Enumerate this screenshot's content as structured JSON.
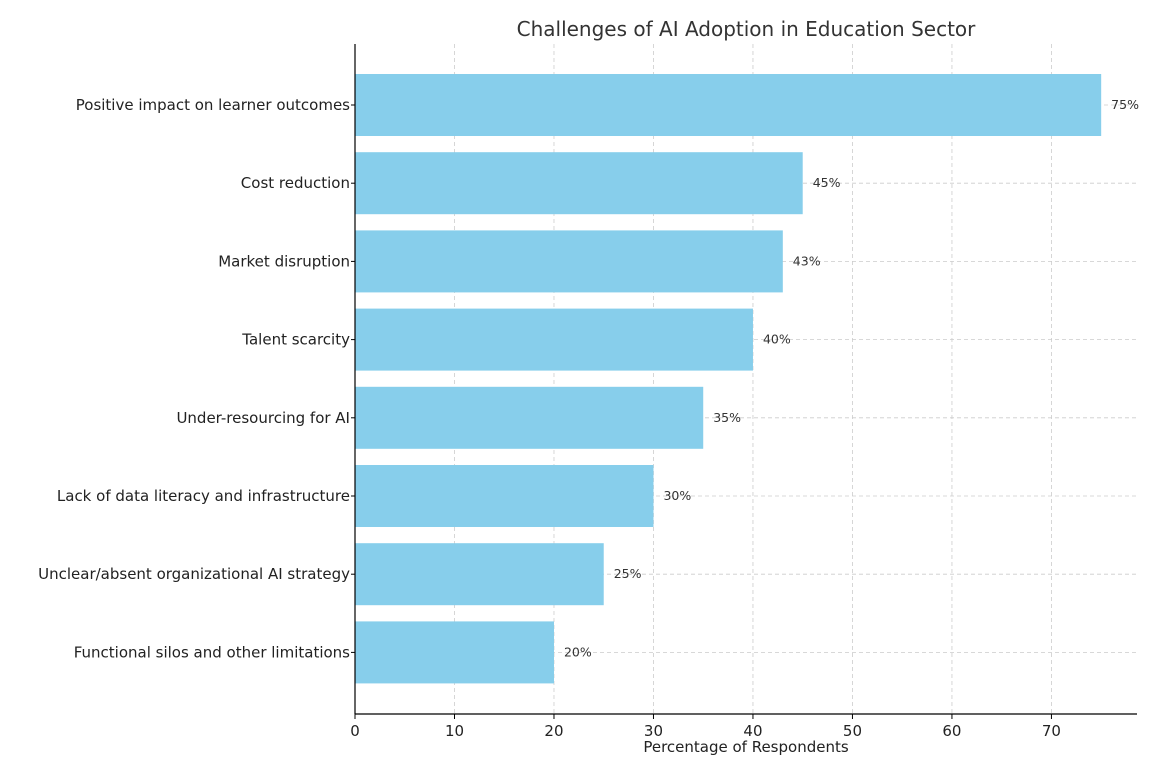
{
  "chart_data": {
    "type": "bar",
    "orientation": "horizontal",
    "title": "Challenges of AI Adoption in Education Sector",
    "xlabel": "Percentage of Respondents",
    "ylabel": "",
    "xlim": [
      0,
      78.6
    ],
    "xticks": [
      0,
      10,
      20,
      30,
      40,
      50,
      60,
      70
    ],
    "grid": true,
    "bar_color": "#87CEEB",
    "categories": [
      "Positive impact on learner outcomes",
      "Cost reduction",
      "Market disruption",
      "Talent scarcity",
      "Under-resourcing for AI",
      "Lack of data literacy and infrastructure",
      "Unclear/absent organizational AI strategy",
      "Functional silos and other limitations"
    ],
    "values": [
      75,
      45,
      43,
      40,
      35,
      30,
      25,
      20
    ],
    "value_labels": [
      "75%",
      "45%",
      "43%",
      "40%",
      "35%",
      "30%",
      "25%",
      "20%"
    ]
  }
}
